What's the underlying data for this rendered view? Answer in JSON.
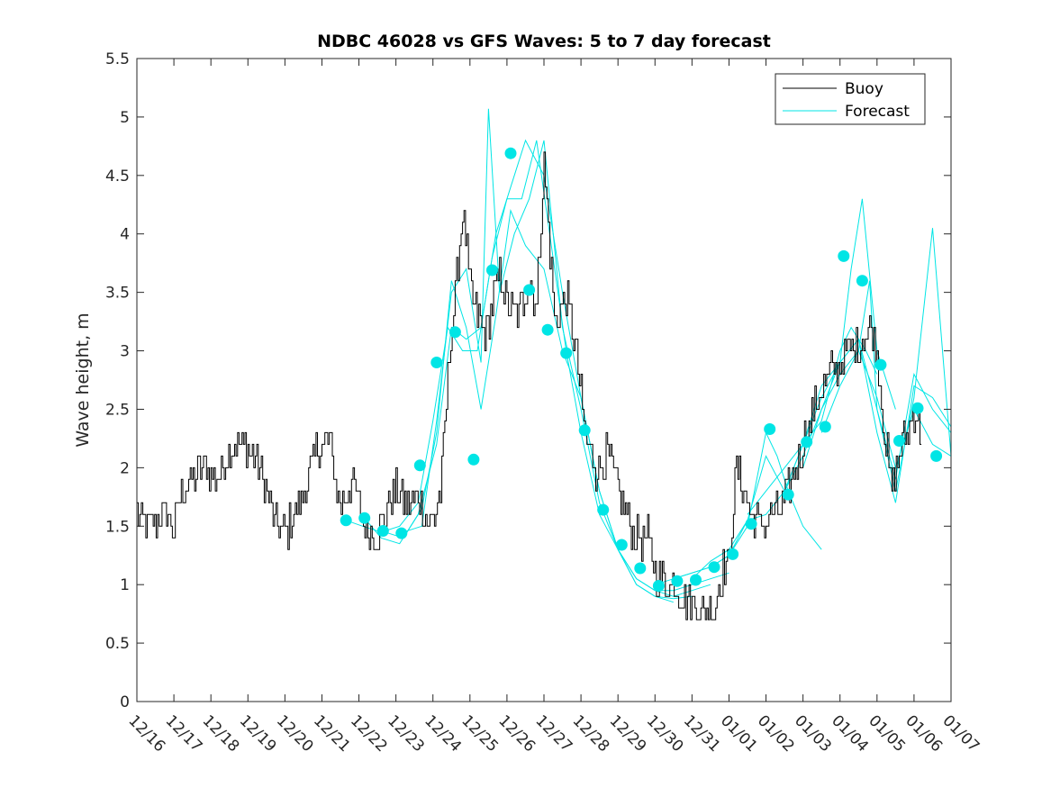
{
  "chart_data": {
    "type": "line",
    "title": "NDBC 46028 vs GFS Waves: 5 to 7 day forecast",
    "xlabel": "",
    "ylabel": "Wave height, m",
    "xlim": [
      0,
      22
    ],
    "ylim": [
      0,
      5.5
    ],
    "x_unit": "days since 12/16",
    "x_ticks": [
      0,
      1,
      2,
      3,
      4,
      5,
      6,
      7,
      8,
      9,
      10,
      11,
      12,
      13,
      14,
      15,
      16,
      17,
      18,
      19,
      20,
      21,
      22
    ],
    "x_tick_labels": [
      "12/16",
      "12/17",
      "12/18",
      "12/19",
      "12/20",
      "12/21",
      "12/22",
      "12/23",
      "12/24",
      "12/25",
      "12/26",
      "12/27",
      "12/28",
      "12/29",
      "12/30",
      "12/31",
      "01/01",
      "01/02",
      "01/03",
      "01/04",
      "01/05",
      "01/06",
      "01/07"
    ],
    "y_ticks": [
      0,
      0.5,
      1,
      1.5,
      2,
      2.5,
      3,
      3.5,
      4,
      4.5,
      5,
      5.5
    ],
    "y_tick_labels": [
      "0",
      "0.5",
      "1",
      "1.5",
      "2",
      "2.5",
      "3",
      "3.5",
      "4",
      "4.5",
      "5",
      "5.5"
    ],
    "legend": {
      "position": "top-right",
      "entries": [
        {
          "label": "Buoy",
          "color": "#000000"
        },
        {
          "label": "Forecast",
          "color": "#00e5e5"
        }
      ]
    },
    "buoy_anchors": {
      "x": [
        0,
        0.3,
        0.8,
        1.0,
        1.15,
        1.5,
        1.9,
        2.2,
        2.6,
        2.9,
        3.2,
        3.5,
        3.7,
        4.0,
        4.3,
        4.6,
        4.9,
        5.2,
        5.5,
        5.8,
        6.1,
        6.5,
        6.8,
        7.0,
        7.3,
        7.6,
        7.9,
        8.0,
        8.2,
        8.3,
        8.5,
        8.7,
        8.8,
        8.9,
        9.0,
        9.2,
        9.4,
        9.6,
        9.8,
        10.0,
        10.3,
        10.6,
        10.8,
        11.0,
        11.3,
        11.6,
        11.9,
        12.1,
        12.4,
        12.7,
        13.0,
        13.3,
        13.6,
        13.8,
        14.0,
        14.3,
        14.5,
        14.7,
        15.0,
        15.3,
        15.6,
        15.8,
        16.0,
        16.2,
        16.4,
        16.6,
        16.9,
        17.2,
        17.5,
        17.8,
        18.1,
        18.4,
        18.7,
        19.0,
        19.3,
        19.6,
        19.8,
        20.0,
        20.2,
        20.4,
        20.6,
        20.8,
        21.0,
        21.2
      ],
      "y": [
        1.6,
        1.5,
        1.6,
        1.45,
        1.75,
        1.9,
        2.0,
        1.9,
        2.2,
        2.2,
        2.1,
        1.8,
        1.5,
        1.45,
        1.6,
        1.9,
        2.2,
        2.2,
        1.65,
        1.9,
        1.55,
        1.4,
        1.7,
        1.8,
        1.7,
        1.75,
        1.5,
        1.55,
        1.8,
        2.3,
        3.2,
        3.8,
        4.2,
        3.9,
        3.5,
        3.3,
        3.1,
        3.4,
        3.7,
        3.4,
        3.3,
        3.6,
        3.4,
        4.6,
        3.2,
        3.5,
        2.9,
        2.3,
        2.0,
        2.1,
        1.8,
        1.5,
        1.4,
        1.4,
        1.1,
        1.0,
        1.0,
        0.95,
        0.8,
        0.75,
        0.8,
        1.1,
        1.2,
        2.0,
        1.8,
        1.6,
        1.5,
        1.6,
        1.7,
        2.0,
        2.3,
        2.6,
        2.8,
        2.9,
        3.0,
        3.1,
        3.2,
        3.0,
        2.3,
        1.8,
        2.1,
        2.3,
        2.5,
        2.3
      ],
      "seed": 12345,
      "step": 0.04,
      "noise": 0.17
    },
    "forecast_lines": [
      {
        "x": [
          5.65,
          6.1,
          6.6,
          7.1,
          7.6,
          8.0,
          8.4,
          8.8,
          9.2,
          9.6,
          10.0,
          10.4,
          10.8,
          11.2,
          11.6,
          12.0,
          12.5,
          13.0,
          13.5,
          14.0,
          14.5
        ],
        "y": [
          1.55,
          1.5,
          1.45,
          1.5,
          1.7,
          2.4,
          3.2,
          3.0,
          3.0,
          3.8,
          4.3,
          4.3,
          4.8,
          3.9,
          3.0,
          2.3,
          1.6,
          1.3,
          1.0,
          0.9,
          0.85
        ]
      },
      {
        "x": [
          6.2,
          6.6,
          7.1,
          7.6,
          8.1,
          8.5,
          8.9,
          9.3,
          9.7,
          10.1,
          10.5,
          11.0,
          11.5,
          12.0,
          12.5,
          13.0,
          13.5,
          14.0,
          14.5,
          15.0
        ],
        "y": [
          1.55,
          1.4,
          1.35,
          1.6,
          2.2,
          3.2,
          3.1,
          3.2,
          4.0,
          4.4,
          4.8,
          4.5,
          3.5,
          2.6,
          1.8,
          1.3,
          1.0,
          0.9,
          0.88,
          0.9
        ]
      },
      {
        "x": [
          6.7,
          7.2,
          7.7,
          8.1,
          8.5,
          8.9,
          9.3,
          9.7,
          10.1,
          10.5,
          11.0,
          11.5,
          12.0,
          12.5,
          13.0,
          13.5,
          14.0,
          14.5,
          15.0,
          15.5
        ],
        "y": [
          1.45,
          1.4,
          1.65,
          2.3,
          3.6,
          3.2,
          2.5,
          3.3,
          4.2,
          3.9,
          3.7,
          3.0,
          2.6,
          1.8,
          1.3,
          1.05,
          0.95,
          0.9,
          0.95,
          1.0
        ]
      },
      {
        "x": [
          7.2,
          7.7,
          8.1,
          8.5,
          8.9,
          9.3,
          9.5,
          9.8,
          10.2,
          10.6,
          11.0,
          11.5,
          12.0,
          12.5,
          13.0,
          13.5,
          14.0,
          14.5,
          15.0,
          15.5,
          16.0
        ],
        "y": [
          1.45,
          1.5,
          2.4,
          3.5,
          3.7,
          2.9,
          5.07,
          3.5,
          4.0,
          4.3,
          4.8,
          3.2,
          2.5,
          1.7,
          1.3,
          1.05,
          0.95,
          0.95,
          1.0,
          1.05,
          1.1
        ]
      },
      {
        "x": [
          14.0,
          14.5,
          15.0,
          15.5,
          16.0,
          16.5,
          17.0,
          17.3,
          17.6,
          18.0,
          18.5
        ],
        "y": [
          1.0,
          1.05,
          1.1,
          1.15,
          1.25,
          1.5,
          2.3,
          2.1,
          1.8,
          1.5,
          1.3
        ]
      },
      {
        "x": [
          14.5,
          15.0,
          15.5,
          16.0,
          16.5,
          17.0,
          17.5,
          18.0,
          18.5,
          19.0,
          19.3,
          19.7,
          20.0
        ],
        "y": [
          1.05,
          1.1,
          1.15,
          1.25,
          1.55,
          2.1,
          1.8,
          2.2,
          2.4,
          3.0,
          3.2,
          3.0,
          2.8
        ]
      },
      {
        "x": [
          15.0,
          15.5,
          16.0,
          16.5,
          17.0,
          17.5,
          18.0,
          18.5,
          19.0,
          19.3,
          19.6,
          20.0,
          20.5
        ],
        "y": [
          1.05,
          1.2,
          1.3,
          1.55,
          1.6,
          1.8,
          2.2,
          2.7,
          2.9,
          3.7,
          4.3,
          3.0,
          2.5
        ]
      },
      {
        "x": [
          16.5,
          17.0,
          17.5,
          18.0,
          18.5,
          19.0,
          19.5,
          20.0,
          20.5,
          21.0,
          21.5,
          22.0
        ],
        "y": [
          1.6,
          1.8,
          2.0,
          2.2,
          2.6,
          2.9,
          3.1,
          2.5,
          1.9,
          2.8,
          2.5,
          2.3
        ]
      },
      {
        "x": [
          17.5,
          18.0,
          18.5,
          19.0,
          19.5,
          20.0,
          20.5,
          21.0,
          21.5,
          22.0
        ],
        "y": [
          1.8,
          2.1,
          2.5,
          2.9,
          3.1,
          2.3,
          1.7,
          2.7,
          2.6,
          2.35
        ]
      },
      {
        "x": [
          18.0,
          18.5,
          19.0,
          19.5,
          19.8,
          20.0,
          20.5,
          21.0,
          21.5,
          22.0
        ],
        "y": [
          2.0,
          2.5,
          2.8,
          3.0,
          3.6,
          2.5,
          1.8,
          2.6,
          4.05,
          2.1
        ]
      },
      {
        "x": [
          18.5,
          19.0,
          19.5,
          20.0,
          20.5,
          21.0,
          21.5,
          22.0
        ],
        "y": [
          2.3,
          2.7,
          3.0,
          2.6,
          2.0,
          2.5,
          2.2,
          2.1
        ]
      }
    ],
    "forecast_points": {
      "x": [
        5.65,
        6.15,
        6.65,
        7.15,
        7.65,
        8.1,
        8.6,
        9.1,
        9.6,
        10.1,
        10.6,
        11.1,
        11.6,
        12.1,
        12.6,
        13.1,
        13.6,
        14.1,
        14.6,
        15.1,
        15.6,
        16.1,
        16.6,
        17.1,
        17.6,
        18.1,
        18.6,
        19.1,
        19.6,
        20.1,
        20.6,
        21.1,
        21.6
      ],
      "y": [
        1.55,
        1.57,
        1.46,
        1.44,
        2.02,
        2.9,
        3.16,
        2.07,
        3.69,
        4.69,
        3.52,
        3.18,
        2.98,
        2.32,
        1.64,
        1.34,
        1.14,
        0.99,
        1.03,
        1.04,
        1.15,
        1.26,
        1.52,
        2.33,
        1.77,
        2.22,
        2.35,
        3.81,
        3.6,
        2.88,
        2.23,
        2.51,
        2.1
      ]
    }
  }
}
